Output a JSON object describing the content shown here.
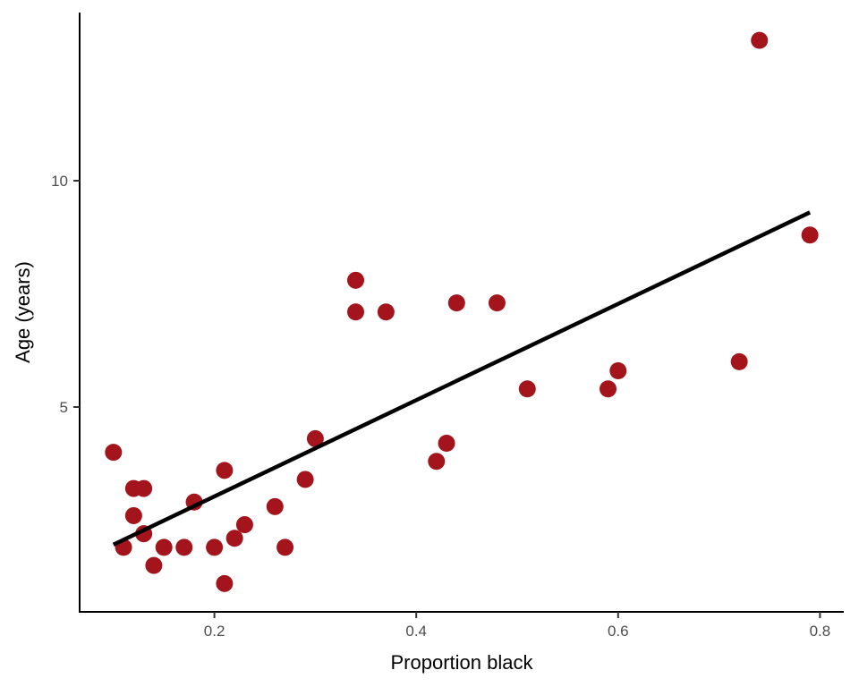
{
  "chart_data": {
    "type": "scatter",
    "title": "",
    "xlabel": "Proportion black",
    "ylabel": "Age (years)",
    "xlim": [
      0.066,
      0.824
    ],
    "ylim": [
      0.47,
      13.7
    ],
    "xticks": [
      0.2,
      0.4,
      0.6,
      0.8
    ],
    "xtick_labels": [
      "0.2",
      "0.4",
      "0.6",
      "0.8"
    ],
    "yticks": [
      5,
      10
    ],
    "ytick_labels": [
      "5",
      "10"
    ],
    "grid": false,
    "point_color": "#A3141C",
    "line_color": "#000000",
    "points": [
      {
        "x": 0.1,
        "y": 4.0
      },
      {
        "x": 0.11,
        "y": 1.9
      },
      {
        "x": 0.12,
        "y": 3.2
      },
      {
        "x": 0.12,
        "y": 2.6
      },
      {
        "x": 0.13,
        "y": 3.2
      },
      {
        "x": 0.13,
        "y": 2.2
      },
      {
        "x": 0.14,
        "y": 1.5
      },
      {
        "x": 0.15,
        "y": 1.9
      },
      {
        "x": 0.17,
        "y": 1.9
      },
      {
        "x": 0.18,
        "y": 2.9
      },
      {
        "x": 0.2,
        "y": 1.9
      },
      {
        "x": 0.21,
        "y": 3.6
      },
      {
        "x": 0.21,
        "y": 1.1
      },
      {
        "x": 0.22,
        "y": 2.1
      },
      {
        "x": 0.23,
        "y": 2.4
      },
      {
        "x": 0.26,
        "y": 2.8
      },
      {
        "x": 0.27,
        "y": 1.9
      },
      {
        "x": 0.29,
        "y": 3.4
      },
      {
        "x": 0.3,
        "y": 4.3
      },
      {
        "x": 0.34,
        "y": 7.8
      },
      {
        "x": 0.34,
        "y": 7.1
      },
      {
        "x": 0.37,
        "y": 7.1
      },
      {
        "x": 0.42,
        "y": 3.8
      },
      {
        "x": 0.43,
        "y": 4.2
      },
      {
        "x": 0.44,
        "y": 7.3
      },
      {
        "x": 0.48,
        "y": 7.3
      },
      {
        "x": 0.51,
        "y": 5.4
      },
      {
        "x": 0.59,
        "y": 5.4
      },
      {
        "x": 0.6,
        "y": 5.8
      },
      {
        "x": 0.72,
        "y": 6.0
      },
      {
        "x": 0.74,
        "y": 13.1
      },
      {
        "x": 0.79,
        "y": 8.8
      }
    ],
    "fit_line": {
      "type": "linear",
      "x": [
        0.1,
        0.79
      ],
      "y": [
        1.96,
        9.3
      ]
    }
  }
}
